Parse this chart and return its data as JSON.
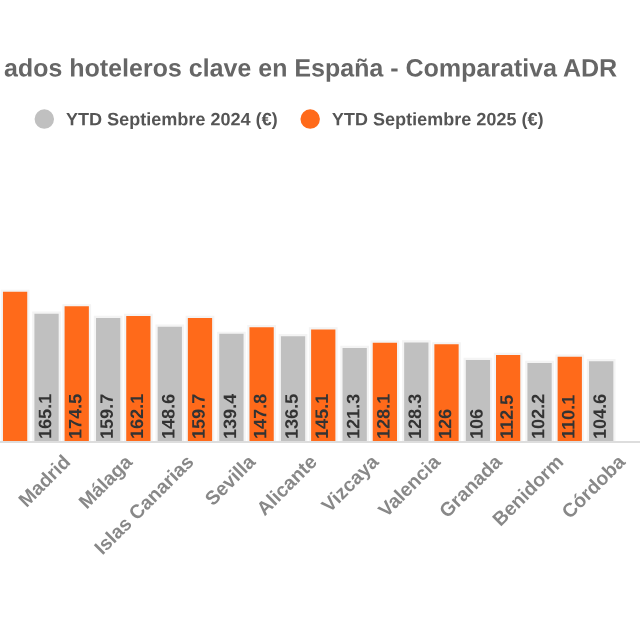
{
  "chart_data": {
    "type": "bar",
    "title": "ados hoteleros clave en España - Comparativa ADR",
    "categories": [
      null,
      "Madrid",
      "Málaga",
      "Islas Canarias",
      "Sevilla",
      "Alicante",
      "Vizcaya",
      "Valencia",
      "Granada",
      "Benidorm",
      "Córdoba"
    ],
    "series": [
      {
        "name": "YTD Septiembre 2024 (€)",
        "color": "#c0c0c0",
        "values": [
          null,
          165.1,
          159.7,
          148.6,
          139.4,
          136.5,
          121.3,
          128.3,
          106,
          102.2,
          104.6
        ],
        "value_labels": [
          null,
          "165.1",
          "159.7",
          "148.6",
          "139.4",
          "136.5",
          "121.3",
          "128.3",
          "106",
          "102.2",
          "104.6"
        ]
      },
      {
        "name": "YTD Septiembre 2025 (€)",
        "color": "#ff6a1a",
        "values": [
          193,
          174.5,
          162.1,
          159.7,
          147.8,
          145.1,
          128.1,
          126,
          112.5,
          110.1,
          null
        ],
        "value_labels": [
          null,
          "174.5",
          "162.1",
          "159.7",
          "147.8",
          "145.1",
          "128.1",
          "126",
          "112.5",
          "110.1",
          null
        ]
      }
    ],
    "legend": "top",
    "grid": false
  }
}
